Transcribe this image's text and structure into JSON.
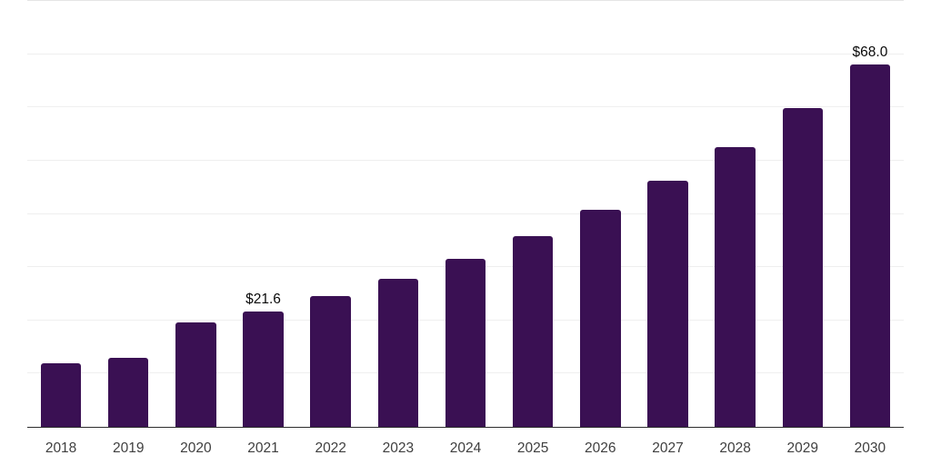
{
  "chart_data": {
    "type": "bar",
    "title": "",
    "xlabel": "",
    "ylabel": "",
    "categories": [
      "2018",
      "2019",
      "2020",
      "2021",
      "2022",
      "2023",
      "2024",
      "2025",
      "2026",
      "2027",
      "2028",
      "2029",
      "2030"
    ],
    "values": [
      11.9,
      13.0,
      19.7,
      21.6,
      24.5,
      27.8,
      31.6,
      35.9,
      40.8,
      46.3,
      52.6,
      59.8,
      68.0
    ],
    "data_labels": [
      {
        "category": "2021",
        "text": "$21.6"
      },
      {
        "category": "2030",
        "text": "$68.0"
      }
    ],
    "ylim": [
      0,
      80
    ],
    "gridline_step": 10,
    "y_tick_labels_visible": false,
    "grid": "horizontal",
    "legend": "none",
    "colors": {
      "bar": "#3a1053",
      "gridline": "#efefef",
      "gridline_top": "#e5e5e5",
      "axis_line": "#2d2d2d",
      "tick_label": "#3f3f3f",
      "data_label": "#0a0a0a"
    }
  }
}
